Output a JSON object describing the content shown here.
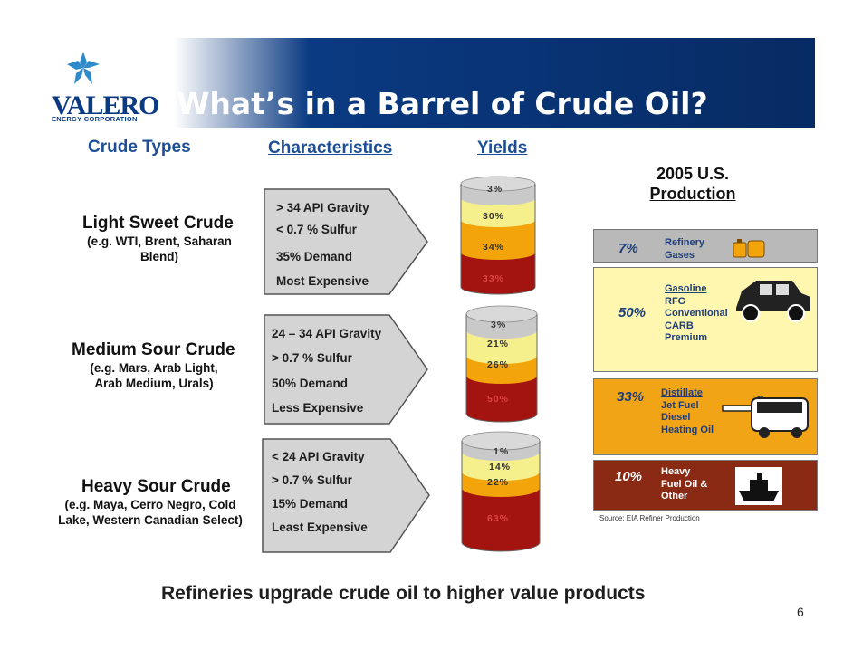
{
  "header": {
    "title": "What’s in a Barrel of Crude Oil?",
    "logo_name": "VALERO",
    "logo_sub": "ENERGY CORPORATION"
  },
  "columns": {
    "crude_types": "Crude Types",
    "characteristics": "Characteristics",
    "yields": "Yields"
  },
  "crudes": [
    {
      "name": "Light Sweet Crude",
      "examples": [
        "(e.g. WTI, Brent, Saharan",
        "Blend)"
      ],
      "characteristics": [
        "> 34 API Gravity",
        "< 0.7 % Sulfur",
        "35% Demand",
        "Most Expensive"
      ],
      "yields": [
        "3%",
        "30%",
        "34%",
        "33%"
      ]
    },
    {
      "name": "Medium Sour Crude",
      "examples": [
        "(e.g. Mars, Arab Light,",
        "Arab Medium, Urals)"
      ],
      "characteristics": [
        "24 – 34 API Gravity",
        "> 0.7 % Sulfur",
        "50% Demand",
        "Less Expensive"
      ],
      "yields": [
        "3%",
        "21%",
        "26%",
        "50%"
      ]
    },
    {
      "name": "Heavy Sour Crude",
      "examples": [
        "(e.g. Maya, Cerro Negro, Cold",
        "Lake, Western Canadian Select)"
      ],
      "characteristics": [
        "< 24 API Gravity",
        "> 0.7 % Sulfur",
        "15% Demand",
        "Least Expensive"
      ],
      "yields": [
        "1%",
        "14%",
        "22%",
        "63%"
      ]
    }
  ],
  "production": {
    "heading_line1": "2005 U.S.",
    "heading_line2": "Production",
    "items": [
      {
        "pct": "7%",
        "lines": [
          "Refinery",
          "Gases"
        ],
        "icon": "gas-tank-icon",
        "color": "#b9b9b9"
      },
      {
        "pct": "50%",
        "lines": [
          "Gasoline",
          "RFG",
          "Conventional",
          "CARB",
          "Premium"
        ],
        "icon": "car-icon",
        "color": "#fff7b0"
      },
      {
        "pct": "33%",
        "lines": [
          "Distillate",
          "Jet Fuel",
          "Diesel",
          "Heating Oil"
        ],
        "icon": "plane-bus-icon",
        "color": "#f2a417"
      },
      {
        "pct": "10%",
        "lines": [
          "Heavy",
          "Fuel Oil &",
          "Other"
        ],
        "icon": "ship-icon",
        "color": "#8a2a14"
      }
    ],
    "source": "Source: EIA Refiner Production"
  },
  "colors": {
    "header_blue": "#0a3a82",
    "layer_grey": "#c9c9c9",
    "layer_yellow": "#f5f08c",
    "layer_orange": "#f2a40a",
    "layer_red": "#a31410"
  },
  "footer": {
    "tagline": "Refineries upgrade crude oil to higher value products",
    "page_number": "6"
  }
}
